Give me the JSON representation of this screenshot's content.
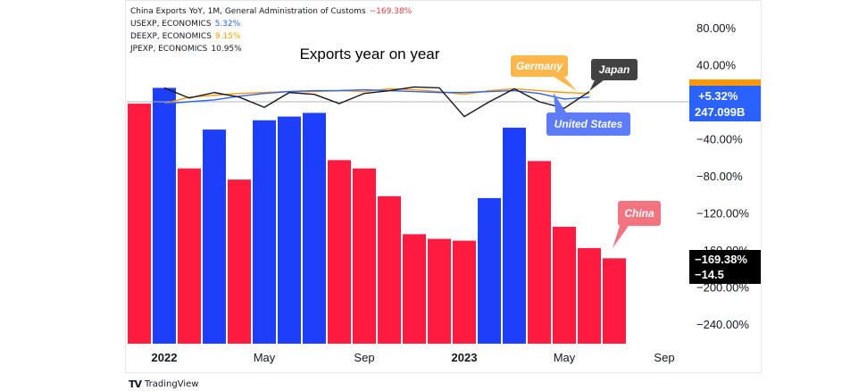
{
  "legend": {
    "main": {
      "text": "China Exports YoY, 1M, General Administration of Customs",
      "value": "−169.38%",
      "color": "#f23645"
    },
    "rows": [
      {
        "text": "USEXP, ECONOMICS",
        "value": "5.32%",
        "color": "#2962ff"
      },
      {
        "text": "DEEXP, ECONOMICS",
        "value": "9.15%",
        "color": "#ff9800"
      },
      {
        "text": "JPEXP, ECONOMICS",
        "value": "10.95%",
        "color": "#131722"
      }
    ]
  },
  "footer": {
    "logo": "TV",
    "brand": "TradingView"
  },
  "chart_data": {
    "type": "bar",
    "title": "Exports year on year",
    "y_ticks": [
      {
        "value": 80,
        "label": "80.00%"
      },
      {
        "value": 40,
        "label": "40.00%"
      },
      {
        "value": -40,
        "label": "−40.00%"
      },
      {
        "value": -80,
        "label": "−80.00%"
      },
      {
        "value": -120,
        "label": "−120.00%"
      },
      {
        "value": -160,
        "label": "−160.00%"
      },
      {
        "value": -200,
        "label": "−200.00%"
      },
      {
        "value": -240,
        "label": "−240.00%"
      }
    ],
    "ylim": [
      -260,
      100
    ],
    "x_ticks": [
      {
        "index": 1,
        "label": "2022",
        "bold": true
      },
      {
        "index": 5,
        "label": "May",
        "bold": false
      },
      {
        "index": 9,
        "label": "Sep",
        "bold": false
      },
      {
        "index": 13,
        "label": "2023",
        "bold": true
      },
      {
        "index": 17,
        "label": "May",
        "bold": false
      },
      {
        "index": 21,
        "label": "Sep",
        "bold": false
      }
    ],
    "xlim": [
      -0.5,
      22.5
    ],
    "bars": {
      "values": [
        -2,
        15,
        -72,
        -30,
        -84,
        -20,
        -16,
        -12,
        -63,
        -72,
        -102,
        -143,
        -148,
        -150,
        -104,
        -28,
        -64,
        -135,
        -158,
        -169
      ],
      "colors": [
        "#ff1a40",
        "#1e3ffa",
        "#ff1a40",
        "#1e3ffa",
        "#ff1a40",
        "#1e3ffa",
        "#1e3ffa",
        "#1e3ffa",
        "#ff1a40",
        "#ff1a40",
        "#ff1a40",
        "#ff1a40",
        "#ff1a40",
        "#ff1a40",
        "#1e3ffa",
        "#1e3ffa",
        "#ff1a40",
        "#ff1a40",
        "#ff1a40",
        "#ff1a40"
      ]
    },
    "series": [
      {
        "name": "Germany",
        "color": "#ff9800",
        "x": [
          1,
          2,
          3,
          4,
          5,
          6,
          7,
          8,
          9,
          10,
          11,
          12,
          13,
          14,
          15,
          16,
          17,
          18
        ],
        "values": [
          -2,
          5,
          7,
          9,
          10,
          11,
          11,
          12,
          11,
          14,
          13,
          11,
          8,
          12,
          14,
          12,
          10,
          9
        ]
      },
      {
        "name": "United States",
        "color": "#2962ff",
        "x": [
          1,
          2,
          3,
          4,
          5,
          6,
          7,
          8,
          9,
          10,
          11,
          12,
          13,
          14,
          15,
          16,
          17,
          18
        ],
        "values": [
          -2,
          0,
          2,
          6,
          9,
          11,
          12,
          12,
          13,
          12,
          11,
          10,
          10,
          11,
          12,
          9,
          3,
          5
        ]
      },
      {
        "name": "Japan",
        "color": "#131722",
        "x": [
          1,
          2,
          3,
          4,
          5,
          6,
          7,
          8,
          9,
          10,
          11,
          12,
          13,
          14,
          15,
          16,
          17,
          18
        ],
        "values": [
          15,
          4,
          10,
          5,
          -6,
          10,
          8,
          -2,
          9,
          12,
          16,
          15,
          -16,
          0,
          14,
          0,
          -7,
          11
        ]
      }
    ],
    "callouts": [
      {
        "label": "Germany",
        "color": "#ffb74d",
        "text_color": "#ffffff"
      },
      {
        "label": "Japan",
        "color": "#424242",
        "text_color": "#ffffff"
      },
      {
        "label": "United States",
        "color": "#5c7cfa",
        "text_color": "#ffffff"
      },
      {
        "label": "China",
        "color": "#f27480",
        "text_color": "#ffffff"
      }
    ],
    "price_labels": {
      "us": {
        "line1": "+5.32%",
        "line2": "247.099B",
        "color": "#2962ff"
      },
      "china": {
        "line1": "−169.38%",
        "line2": "−14.5",
        "color": "#000000"
      },
      "orange_tag_color": "#ff9800"
    },
    "zero_line": true
  }
}
